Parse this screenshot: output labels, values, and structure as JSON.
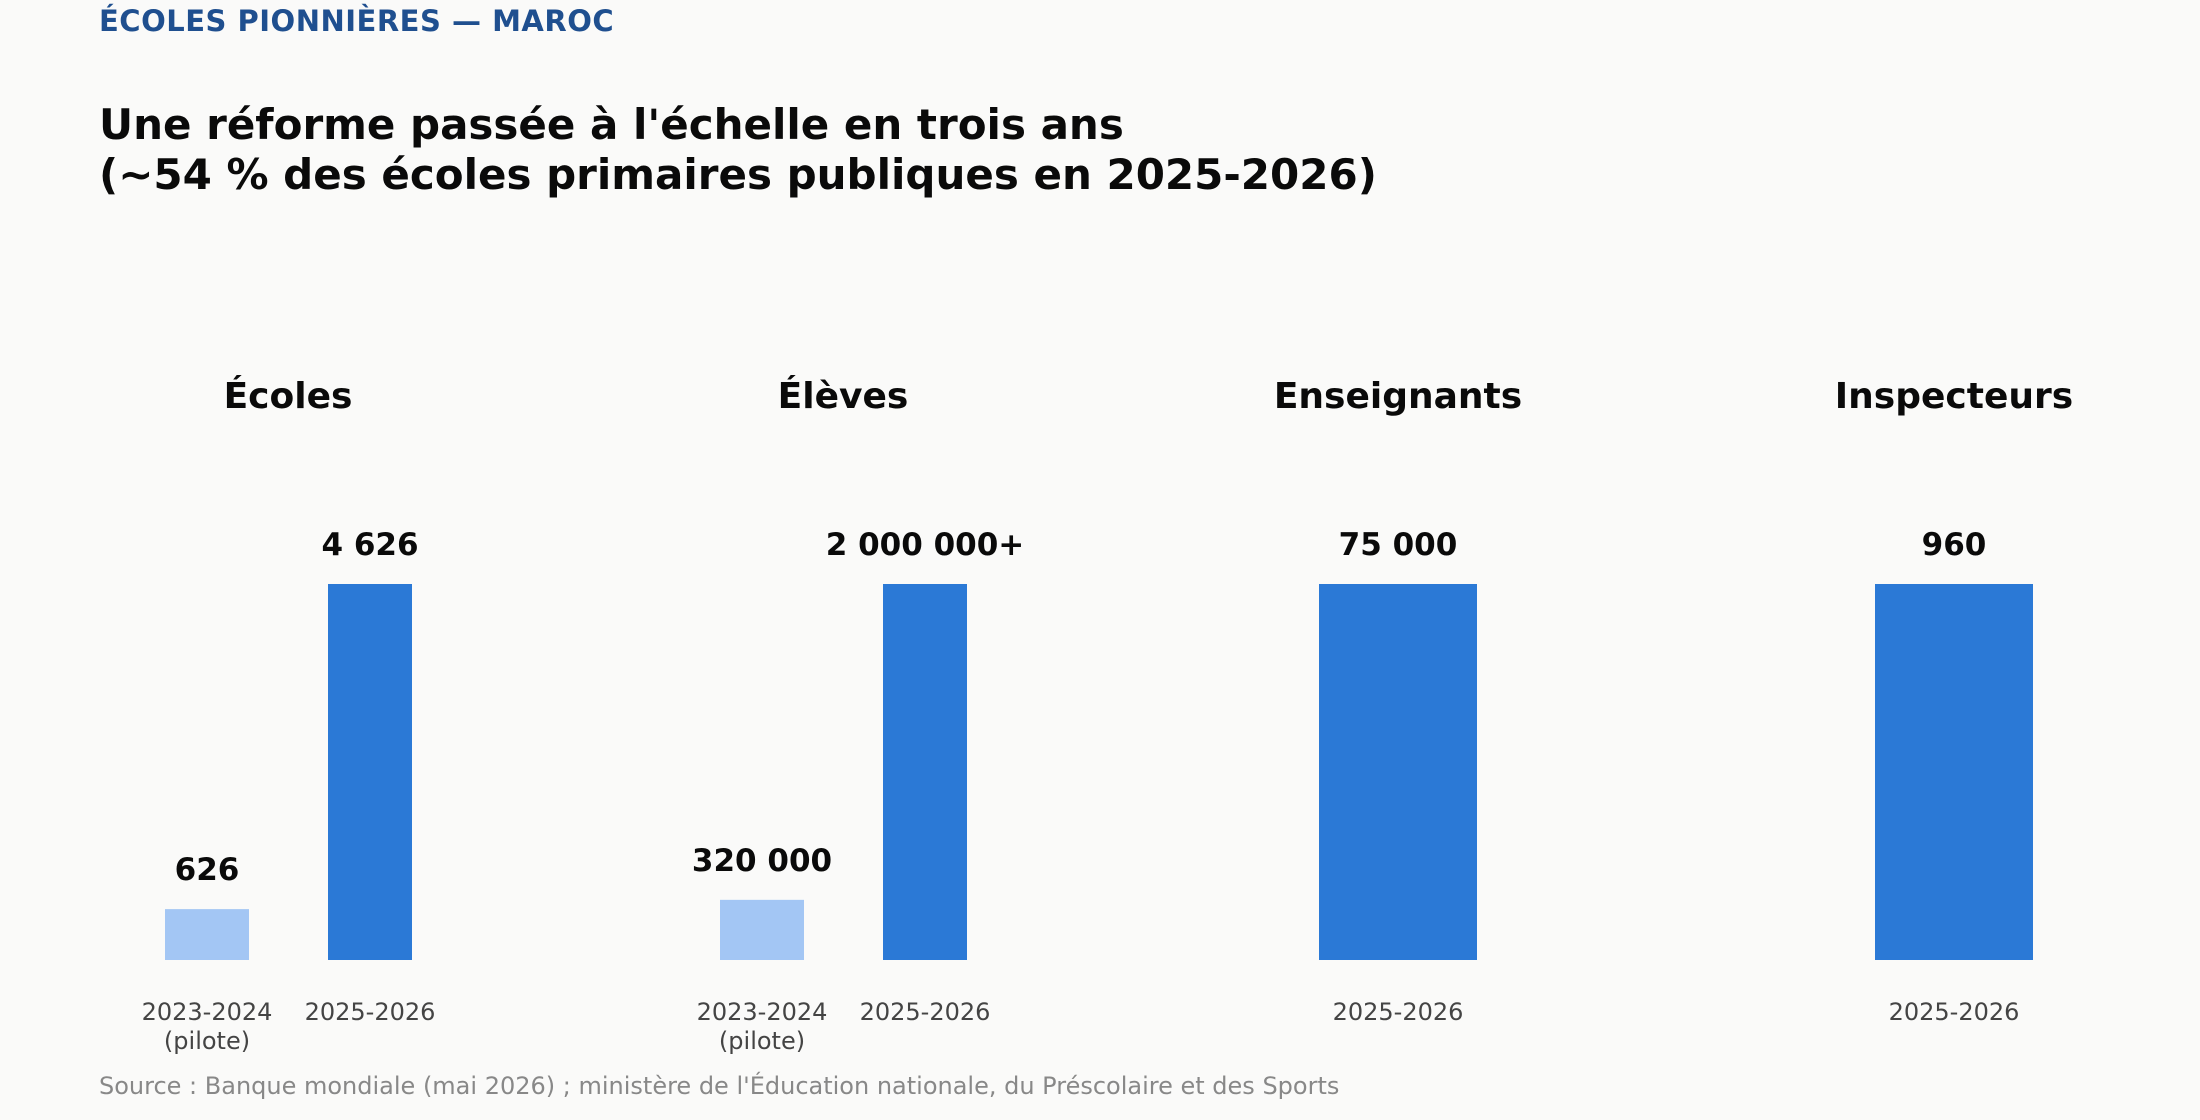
{
  "kicker": "ÉCOLES PIONNIÈRES — MAROC",
  "title_lines": [
    "Une réforme passée à l'échelle en trois ans",
    "(~54 % des écoles primaires publiques en 2025-2026)"
  ],
  "source": "Source : Banque mondiale (mai 2026) ; ministère de l'Éducation nationale, du Préscolaire et des Sports",
  "colors": {
    "pilot": "#a3c6f4",
    "current": "#2b79d6",
    "kicker": "#1f4f8f"
  },
  "chart_data": [
    {
      "type": "bar",
      "title": "Écoles",
      "categories": [
        "2023-2024\n(pilote)",
        "2025-2026"
      ],
      "values": [
        626,
        4626
      ],
      "value_labels": [
        "626",
        "4 626"
      ],
      "ylim": [
        0,
        4626
      ]
    },
    {
      "type": "bar",
      "title": "Élèves",
      "categories": [
        "2023-2024\n(pilote)",
        "2025-2026"
      ],
      "values": [
        320000,
        2000000
      ],
      "value_labels": [
        "320 000",
        "2 000 000+"
      ],
      "ylim": [
        0,
        2000000
      ]
    },
    {
      "type": "bar",
      "title": "Enseignants",
      "categories": [
        "2025-2026"
      ],
      "values": [
        75000
      ],
      "value_labels": [
        "75 000"
      ],
      "ylim": [
        0,
        75000
      ]
    },
    {
      "type": "bar",
      "title": "Inspecteurs",
      "categories": [
        "2025-2026"
      ],
      "values": [
        960
      ],
      "value_labels": [
        "960"
      ],
      "ylim": [
        0,
        960
      ]
    }
  ]
}
